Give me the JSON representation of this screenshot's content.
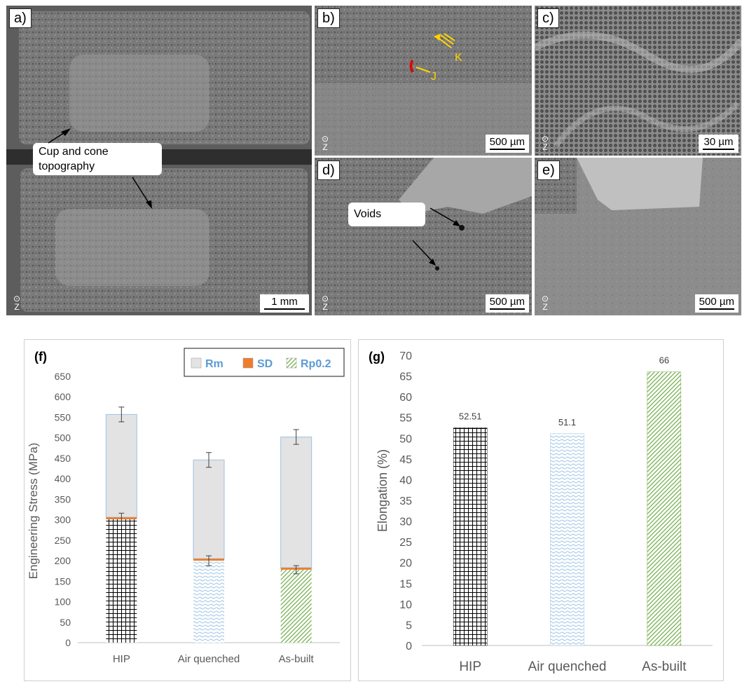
{
  "micrographs": {
    "a": {
      "label": "a)",
      "scale": "1 mm",
      "callout": "Cup and cone\ntopography"
    },
    "b": {
      "label": "b)",
      "scale": "500 µm",
      "marker_j": "J",
      "marker_k": "K"
    },
    "c": {
      "label": "c)",
      "scale": "30 µm"
    },
    "d": {
      "label": "d)",
      "scale": "500 µm",
      "callout": "Voids"
    },
    "e": {
      "label": "e)",
      "scale": "500 µm"
    },
    "axis_symbol": "Z"
  },
  "chart_data": [
    {
      "id": "f",
      "panel_label": "(f)",
      "type": "bar",
      "categories": [
        "HIP",
        "Air quenched",
        "As-built"
      ],
      "series": [
        {
          "name": "Rm",
          "values": [
            557,
            446,
            502
          ],
          "errors": [
            18,
            18,
            18
          ],
          "color": "#e3e3e3"
        },
        {
          "name": "SD",
          "values": [
            5,
            5,
            5
          ],
          "color": "#ed7d31"
        },
        {
          "name": "Rp0.2",
          "values": [
            301,
            200,
            178
          ],
          "errors": [
            15,
            12,
            10
          ],
          "color": "#70ad47"
        }
      ],
      "ylabel": "Engineering Stress (MPa)",
      "ylim": [
        0,
        650
      ],
      "yticks": [
        0,
        50,
        100,
        150,
        200,
        250,
        300,
        350,
        400,
        450,
        500,
        550,
        600,
        650
      ],
      "legend_position": "top-right"
    },
    {
      "id": "g",
      "panel_label": "(g)",
      "type": "bar",
      "categories": [
        "HIP",
        "Air quenched",
        "As-built"
      ],
      "values": [
        52.51,
        51.1,
        66
      ],
      "data_labels": [
        "52.51",
        "51.1",
        "66"
      ],
      "ylabel": "Elongation (%)",
      "ylim": [
        0,
        70
      ],
      "yticks": [
        0,
        5,
        10,
        15,
        20,
        25,
        30,
        35,
        40,
        45,
        50,
        55,
        60,
        65,
        70
      ]
    }
  ]
}
